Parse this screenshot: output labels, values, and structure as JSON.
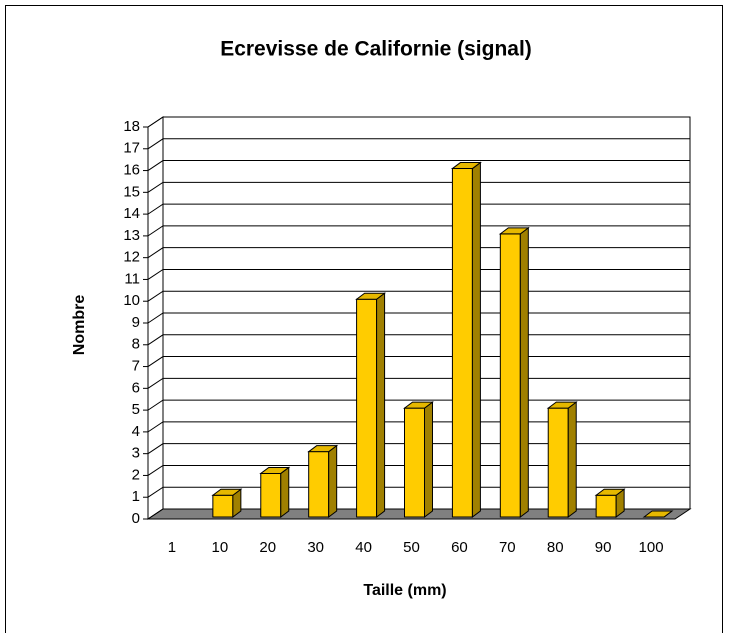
{
  "chart_data": {
    "type": "bar",
    "title": "Ecrevisse de Californie (signal)",
    "x_label": "Taille (mm)",
    "y_label": "Nombre",
    "categories": [
      "1",
      "10",
      "20",
      "30",
      "40",
      "50",
      "60",
      "70",
      "80",
      "90",
      "100"
    ],
    "values": [
      0,
      1,
      2,
      3,
      10,
      5,
      16,
      13,
      5,
      1,
      0
    ],
    "color": "#ffcc00",
    "ylim": [
      0,
      18
    ],
    "yticks": [
      0,
      1,
      2,
      3,
      4,
      5,
      6,
      7,
      8,
      9,
      10,
      11,
      12,
      13,
      14,
      15,
      16,
      17,
      18
    ],
    "grid": true
  }
}
